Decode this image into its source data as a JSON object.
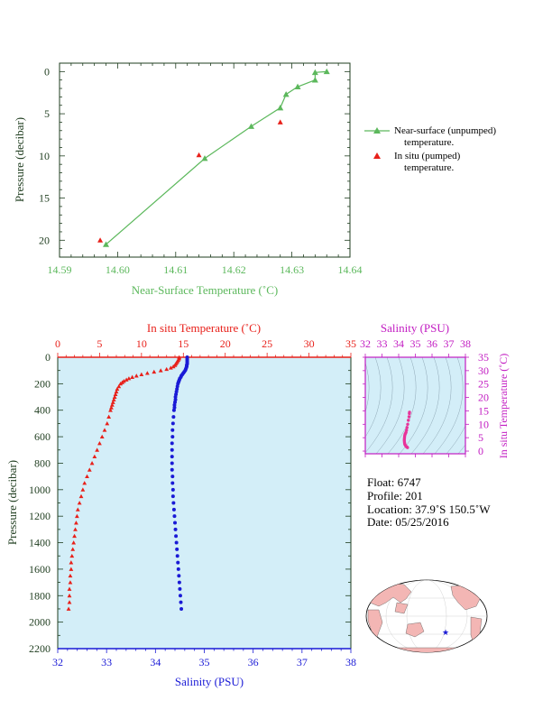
{
  "colors": {
    "green": "#5cb85c",
    "red": "#e8201a",
    "blue": "#1a1ad6",
    "magenta": "#c21cc2",
    "axis_dark": "#1f3d1f",
    "profile_bg": "#d3eef8",
    "ts_line": "#8fa8b6",
    "pink": "#e8339a"
  },
  "top_chart": {
    "xlabel": "Near-Surface Temperature (˚C)",
    "ylabel": "Pressure (decibar)",
    "xticks": [
      "14.59",
      "14.60",
      "14.61",
      "14.62",
      "14.63",
      "14.64"
    ],
    "yticks": [
      "0",
      "5",
      "10",
      "15",
      "20"
    ],
    "legend": {
      "series1_line1": "Near-surface (unpumped)",
      "series1_line2": "temperature.",
      "series2_line1": "In situ (pumped)",
      "series2_line2": "temperature."
    }
  },
  "bottom_chart": {
    "top_xlabel": "In situ Temperature (˚C)",
    "bottom_xlabel": "Salinity (PSU)",
    "ylabel": "Pressure (decibar)",
    "temp_ticks": [
      "0",
      "5",
      "10",
      "15",
      "20",
      "25",
      "30",
      "35"
    ],
    "sal_ticks": [
      "32",
      "33",
      "34",
      "35",
      "36",
      "37",
      "38"
    ],
    "pres_ticks": [
      "0",
      "200",
      "400",
      "600",
      "800",
      "1000",
      "1200",
      "1400",
      "1600",
      "1800",
      "2000",
      "2200"
    ]
  },
  "ts_chart": {
    "title": "Salinity (PSU)",
    "ylabel": "In situ Temperature (˚C)",
    "sal_ticks": [
      "32",
      "33",
      "34",
      "35",
      "36",
      "37",
      "38"
    ],
    "temp_ticks": [
      "0",
      "5",
      "10",
      "15",
      "20",
      "25",
      "30",
      "35"
    ]
  },
  "info": {
    "float": "Float:  6747",
    "profile": "Profile:  201",
    "location": "Location:  37.9˚S  150.5˚W",
    "date": "Date:  05/25/2016"
  },
  "footer": "",
  "chart_data": [
    {
      "type": "line",
      "xlabel": "Near-Surface Temperature (˚C)",
      "ylabel": "Pressure (decibar)",
      "xlim": [
        14.59,
        14.64
      ],
      "ylim": [
        22,
        -1
      ],
      "series": [
        {
          "name": "Near-surface (unpumped) temperature.",
          "marker": "triangle",
          "line": true,
          "points": [
            [
              14.636,
              0.0
            ],
            [
              14.634,
              0.1
            ],
            [
              14.634,
              1.0
            ],
            [
              14.631,
              1.8
            ],
            [
              14.629,
              2.7
            ],
            [
              14.628,
              4.3
            ],
            [
              14.623,
              6.5
            ],
            [
              14.615,
              10.3
            ],
            [
              14.598,
              20.5
            ]
          ]
        },
        {
          "name": "In situ (pumped) temperature.",
          "marker": "triangle",
          "line": false,
          "points": [
            [
              14.628,
              6.0
            ],
            [
              14.614,
              9.9
            ],
            [
              14.597,
              20.0
            ]
          ]
        }
      ]
    },
    {
      "type": "scatter",
      "xlabel": "Salinity (PSU)",
      "x2label": "In situ Temperature (˚C)",
      "ylabel": "Pressure (decibar)",
      "xlim_salinity": [
        32,
        38
      ],
      "xlim_temperature": [
        0,
        35
      ],
      "ylim": [
        2200,
        0
      ],
      "series": [
        {
          "name": "In situ Temperature (˚C)",
          "axis": "top",
          "points": [
            [
              14.5,
              0
            ],
            [
              14.5,
              10
            ],
            [
              14.4,
              20
            ],
            [
              14.3,
              30
            ],
            [
              14.2,
              40
            ],
            [
              14.1,
              50
            ],
            [
              14.0,
              60
            ],
            [
              13.8,
              70
            ],
            [
              13.5,
              80
            ],
            [
              13.0,
              90
            ],
            [
              12.3,
              100
            ],
            [
              11.5,
              110
            ],
            [
              10.7,
              120
            ],
            [
              10.0,
              130
            ],
            [
              9.4,
              140
            ],
            [
              8.9,
              150
            ],
            [
              8.5,
              160
            ],
            [
              8.2,
              170
            ],
            [
              7.9,
              180
            ],
            [
              7.7,
              190
            ],
            [
              7.5,
              200
            ],
            [
              7.3,
              220
            ],
            [
              7.1,
              240
            ],
            [
              7.0,
              260
            ],
            [
              6.9,
              280
            ],
            [
              6.8,
              300
            ],
            [
              6.7,
              320
            ],
            [
              6.6,
              340
            ],
            [
              6.5,
              360
            ],
            [
              6.4,
              380
            ],
            [
              6.3,
              400
            ],
            [
              6.1,
              450
            ],
            [
              5.9,
              500
            ],
            [
              5.6,
              550
            ],
            [
              5.3,
              600
            ],
            [
              5.0,
              650
            ],
            [
              4.7,
              700
            ],
            [
              4.4,
              750
            ],
            [
              4.1,
              800
            ],
            [
              3.8,
              850
            ],
            [
              3.5,
              900
            ],
            [
              3.2,
              950
            ],
            [
              3.0,
              1000
            ],
            [
              2.8,
              1050
            ],
            [
              2.6,
              1100
            ],
            [
              2.4,
              1150
            ],
            [
              2.3,
              1200
            ],
            [
              2.2,
              1250
            ],
            [
              2.1,
              1300
            ],
            [
              2.0,
              1350
            ],
            [
              1.9,
              1400
            ],
            [
              1.8,
              1450
            ],
            [
              1.7,
              1500
            ],
            [
              1.6,
              1550
            ],
            [
              1.6,
              1600
            ],
            [
              1.5,
              1650
            ],
            [
              1.5,
              1700
            ],
            [
              1.4,
              1750
            ],
            [
              1.4,
              1800
            ],
            [
              1.4,
              1850
            ],
            [
              1.3,
              1900
            ]
          ]
        },
        {
          "name": "Salinity (PSU)",
          "axis": "bottom",
          "points": [
            [
              34.65,
              0
            ],
            [
              34.65,
              10
            ],
            [
              34.65,
              20
            ],
            [
              34.65,
              30
            ],
            [
              34.65,
              40
            ],
            [
              34.65,
              50
            ],
            [
              34.64,
              60
            ],
            [
              34.64,
              70
            ],
            [
              34.63,
              80
            ],
            [
              34.62,
              90
            ],
            [
              34.61,
              100
            ],
            [
              34.59,
              110
            ],
            [
              34.57,
              120
            ],
            [
              34.55,
              130
            ],
            [
              34.53,
              140
            ],
            [
              34.52,
              150
            ],
            [
              34.5,
              160
            ],
            [
              34.49,
              170
            ],
            [
              34.48,
              180
            ],
            [
              34.47,
              190
            ],
            [
              34.46,
              200
            ],
            [
              34.45,
              220
            ],
            [
              34.44,
              240
            ],
            [
              34.43,
              260
            ],
            [
              34.42,
              280
            ],
            [
              34.41,
              300
            ],
            [
              34.41,
              320
            ],
            [
              34.4,
              340
            ],
            [
              34.39,
              360
            ],
            [
              34.39,
              380
            ],
            [
              34.38,
              400
            ],
            [
              34.37,
              450
            ],
            [
              34.36,
              500
            ],
            [
              34.35,
              550
            ],
            [
              34.35,
              600
            ],
            [
              34.34,
              650
            ],
            [
              34.34,
              700
            ],
            [
              34.34,
              750
            ],
            [
              34.34,
              800
            ],
            [
              34.34,
              850
            ],
            [
              34.35,
              900
            ],
            [
              34.35,
              950
            ],
            [
              34.36,
              1000
            ],
            [
              34.36,
              1050
            ],
            [
              34.37,
              1100
            ],
            [
              34.38,
              1150
            ],
            [
              34.39,
              1200
            ],
            [
              34.4,
              1250
            ],
            [
              34.41,
              1300
            ],
            [
              34.42,
              1350
            ],
            [
              34.43,
              1400
            ],
            [
              34.44,
              1450
            ],
            [
              34.45,
              1500
            ],
            [
              34.46,
              1550
            ],
            [
              34.47,
              1600
            ],
            [
              34.48,
              1650
            ],
            [
              34.49,
              1700
            ],
            [
              34.5,
              1750
            ],
            [
              34.51,
              1800
            ],
            [
              34.52,
              1850
            ],
            [
              34.53,
              1900
            ]
          ]
        }
      ]
    },
    {
      "type": "scatter",
      "xlabel": "Salinity (PSU)",
      "ylabel": "In situ Temperature (˚C)",
      "xlim": [
        32,
        38
      ],
      "ylim": [
        -1,
        35
      ],
      "series": [
        {
          "name": "T-S",
          "points": [
            [
              34.65,
              14.5
            ],
            [
              34.64,
              14.0
            ],
            [
              34.62,
              12.8
            ],
            [
              34.58,
              11.5
            ],
            [
              34.54,
              10.0
            ],
            [
              34.5,
              8.8
            ],
            [
              34.47,
              7.8
            ],
            [
              34.44,
              7.0
            ],
            [
              34.41,
              6.6
            ],
            [
              34.38,
              6.2
            ],
            [
              34.36,
              5.6
            ],
            [
              34.35,
              5.0
            ],
            [
              34.34,
              4.4
            ],
            [
              34.34,
              3.8
            ],
            [
              34.35,
              3.2
            ],
            [
              34.36,
              2.8
            ],
            [
              34.38,
              2.4
            ],
            [
              34.41,
              2.1
            ],
            [
              34.44,
              1.8
            ],
            [
              34.47,
              1.6
            ],
            [
              34.5,
              1.5
            ],
            [
              34.53,
              1.3
            ]
          ]
        }
      ]
    }
  ]
}
